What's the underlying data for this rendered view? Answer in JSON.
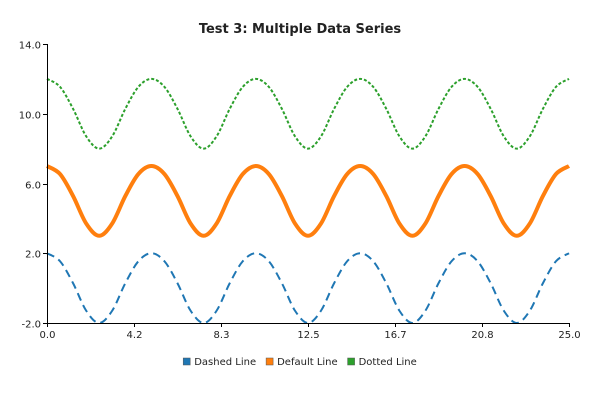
{
  "chart_data": {
    "type": "line",
    "title": "Test 3: Multiple Data Series",
    "xlabel": "",
    "ylabel": "",
    "xlim": [
      0.0,
      25.0
    ],
    "ylim": [
      -2.0,
      14.0
    ],
    "x_ticks": [
      "0.0",
      "4.2",
      "8.3",
      "12.5",
      "16.7",
      "20.8",
      "25.0"
    ],
    "y_ticks": [
      "-2.0",
      "2.0",
      "6.0",
      "10.0",
      "14.0"
    ],
    "x_tick_values": [
      0.0,
      4.1667,
      8.3333,
      12.5,
      16.6667,
      20.8333,
      25.0
    ],
    "y_tick_values": [
      -2.0,
      2.0,
      6.0,
      10.0,
      14.0
    ],
    "grid": false,
    "legend_position": "bottom",
    "x": [
      0.0,
      0.625,
      1.25,
      1.875,
      2.5,
      3.125,
      3.75,
      4.375,
      5.0,
      5.625,
      6.25,
      6.875,
      7.5,
      8.125,
      8.75,
      9.375,
      10.0,
      10.625,
      11.25,
      11.875,
      12.5,
      13.125,
      13.75,
      14.375,
      15.0,
      15.625,
      16.25,
      16.875,
      17.5,
      18.125,
      18.75,
      19.375,
      20.0,
      20.625,
      21.25,
      21.875,
      22.5,
      23.125,
      23.75,
      24.375,
      25.0
    ],
    "series": [
      {
        "name": "Dashed Line",
        "color": "#1f77b4",
        "style": "dashed",
        "values": [
          2.0,
          1.54,
          0.28,
          -1.29,
          -2.0,
          -1.29,
          0.28,
          1.54,
          2.0,
          1.54,
          0.28,
          -1.29,
          -2.0,
          -1.29,
          0.28,
          1.54,
          2.0,
          1.54,
          0.28,
          -1.29,
          -2.0,
          -1.29,
          0.28,
          1.54,
          2.0,
          1.54,
          0.28,
          -1.29,
          -2.0,
          -1.29,
          0.28,
          1.54,
          2.0,
          1.54,
          0.28,
          -1.29,
          -2.0,
          -1.29,
          0.28,
          1.54,
          2.0
        ]
      },
      {
        "name": "Default Line",
        "color": "#ff7f0e",
        "style": "solid",
        "values": [
          7.0,
          6.54,
          5.28,
          3.71,
          3.0,
          3.71,
          5.28,
          6.54,
          7.0,
          6.54,
          5.28,
          3.71,
          3.0,
          3.71,
          5.28,
          6.54,
          7.0,
          6.54,
          5.28,
          3.71,
          3.0,
          3.71,
          5.28,
          6.54,
          7.0,
          6.54,
          5.28,
          3.71,
          3.0,
          3.71,
          5.28,
          6.54,
          7.0,
          6.54,
          5.28,
          3.71,
          3.0,
          3.71,
          5.28,
          6.54,
          7.0
        ]
      },
      {
        "name": "Dotted Line",
        "color": "#2ca02c",
        "style": "dotted",
        "values": [
          12.0,
          11.54,
          10.28,
          8.71,
          8.0,
          8.71,
          10.28,
          11.54,
          12.0,
          11.54,
          10.28,
          8.71,
          8.0,
          8.71,
          10.28,
          11.54,
          12.0,
          11.54,
          10.28,
          8.71,
          8.0,
          8.71,
          10.28,
          11.54,
          12.0,
          11.54,
          10.28,
          8.71,
          8.0,
          8.71,
          10.28,
          11.54,
          12.0,
          11.54,
          10.28,
          8.71,
          8.0,
          8.71,
          10.28,
          11.54,
          12.0
        ]
      }
    ]
  }
}
